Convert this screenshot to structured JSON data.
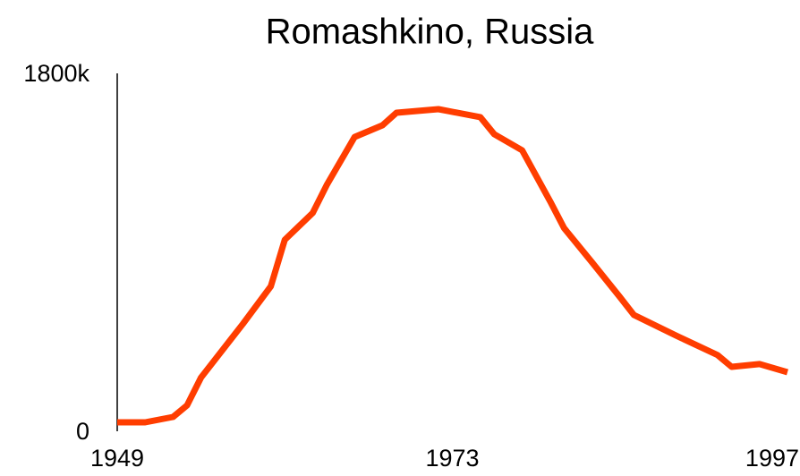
{
  "chart_data": {
    "type": "line",
    "title": "Romashkino, Russia",
    "x": [
      1949,
      1951,
      1953,
      1954,
      1955,
      1958,
      1960,
      1961,
      1963,
      1964,
      1966,
      1968,
      1969,
      1972,
      1975,
      1976,
      1978,
      1980,
      1981,
      1983,
      1985,
      1986,
      1989,
      1992,
      1993,
      1995,
      1997
    ],
    "series": [
      {
        "name": "Romashkino",
        "color": "#ff3d00",
        "values": [
          45000,
          45000,
          72000,
          130000,
          270000,
          540000,
          729000,
          963000,
          1098000,
          1238000,
          1480000,
          1539000,
          1602000,
          1620000,
          1580000,
          1494000,
          1413000,
          1157000,
          1022000,
          850000,
          675000,
          585000,
          482000,
          383000,
          324000,
          338000,
          297000
        ]
      }
    ],
    "xlim": [
      1949,
      1997
    ],
    "xticks": [
      1949,
      1973,
      1997
    ],
    "ylim": [
      0,
      1800000
    ],
    "yticks": [
      0,
      {
        "value": 1800000,
        "label": "1800k"
      }
    ]
  }
}
